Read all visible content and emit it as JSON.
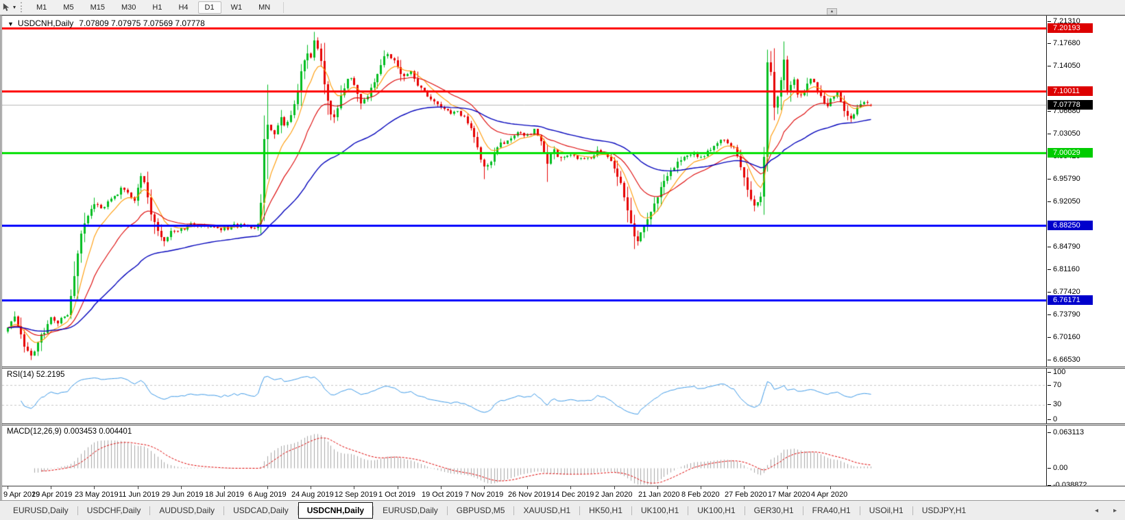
{
  "toolbar": {
    "caret_glyph": "▾",
    "timeframes": [
      {
        "label": "M1",
        "active": false
      },
      {
        "label": "M5",
        "active": false
      },
      {
        "label": "M15",
        "active": false
      },
      {
        "label": "M30",
        "active": false
      },
      {
        "label": "H1",
        "active": false
      },
      {
        "label": "H4",
        "active": false
      },
      {
        "label": "D1",
        "active": true
      },
      {
        "label": "W1",
        "active": false
      },
      {
        "label": "MN",
        "active": false
      }
    ],
    "scroll_up_glyph": "▲"
  },
  "chart_header": {
    "collapse_glyph": "▼",
    "symbol": "USDCNH,Daily",
    "ohlc_text": "7.07809 7.07975 7.07569 7.07778"
  },
  "price_axis": {
    "ticks": [
      "7.21310",
      "7.17680",
      "7.14050",
      "7.06680",
      "7.03050",
      "6.99420",
      "6.95790",
      "6.92050",
      "6.84790",
      "6.81160",
      "6.77420",
      "6.73790",
      "6.70160",
      "6.66530"
    ],
    "badges": [
      {
        "value": "7.20193",
        "color": "#dd0000"
      },
      {
        "value": "7.10011",
        "color": "#dd0000"
      },
      {
        "value": "7.07778",
        "color": "#000000"
      },
      {
        "value": "7.00029",
        "color": "#00cc00"
      },
      {
        "value": "6.88250",
        "color": "#0000cc"
      },
      {
        "value": "6.76171",
        "color": "#0000cc"
      }
    ]
  },
  "rsi_panel": {
    "label": "RSI(14)",
    "value": "52.2195",
    "scale": [
      "100",
      "70",
      "30",
      "0"
    ]
  },
  "macd_panel": {
    "label": "MACD(12,26,9)",
    "value": "0.003453 0.004401",
    "scale": [
      "0.063113",
      "0.00",
      "-0.038872"
    ]
  },
  "date_axis": [
    "9 Apr 2019",
    "29 Apr 2019",
    "23 May 2019",
    "11 Jun 2019",
    "29 Jun 2019",
    "18 Jul 2019",
    "6 Aug 2019",
    "24 Aug 2019",
    "12 Sep 2019",
    "1 Oct 2019",
    "19 Oct 2019",
    "7 Nov 2019",
    "26 Nov 2019",
    "14 Dec 2019",
    "2 Jan 2020",
    "21 Jan 2020",
    "8 Feb 2020",
    "27 Feb 2020",
    "17 Mar 2020",
    "4 Apr 2020"
  ],
  "tab_bar": {
    "scroll_left": "◂",
    "scroll_right": "▸",
    "tabs": [
      {
        "label": "EURUSD,Daily",
        "active": false
      },
      {
        "label": "USDCHF,Daily",
        "active": false
      },
      {
        "label": "AUDUSD,Daily",
        "active": false
      },
      {
        "label": "USDCAD,Daily",
        "active": false
      },
      {
        "label": "USDCNH,Daily",
        "active": true
      },
      {
        "label": "EURUSD,Daily",
        "active": false
      },
      {
        "label": "GBPUSD,M5",
        "active": false
      },
      {
        "label": "XAUUSD,H1",
        "active": false
      },
      {
        "label": "HK50,H1",
        "active": false
      },
      {
        "label": "UK100,H1",
        "active": false
      },
      {
        "label": "UK100,H1",
        "active": false
      },
      {
        "label": "GER30,H1",
        "active": false
      },
      {
        "label": "FRA40,H1",
        "active": false
      },
      {
        "label": "USOil,H1",
        "active": false
      },
      {
        "label": "USDJPY,H1",
        "active": false
      }
    ]
  },
  "chart_data": {
    "type": "candlestick",
    "title": "USDCNH,Daily",
    "symbol": "USDCNH",
    "timeframe": "Daily",
    "last_ohlc": {
      "open": 7.07809,
      "high": 7.07975,
      "low": 7.07569,
      "close": 7.07778
    },
    "price_range": {
      "top": 7.2131,
      "bottom": 6.6653
    },
    "candle_count": 260,
    "candle_up_color": "#00bd1f",
    "candle_down_color": "#e60000",
    "horizontal_lines": [
      {
        "price": 7.20193,
        "color": "#fe0000",
        "width": 3,
        "style": "resistance"
      },
      {
        "price": 7.10011,
        "color": "#fe0000",
        "width": 3,
        "style": "resistance"
      },
      {
        "price": 7.07778,
        "color": "#b9b9b9",
        "width": 1,
        "style": "current-price"
      },
      {
        "price": 7.00029,
        "color": "#00e000",
        "width": 3,
        "style": "level"
      },
      {
        "price": 6.8825,
        "color": "#0000fe",
        "width": 3,
        "style": "support"
      },
      {
        "price": 6.76171,
        "color": "#0000fe",
        "width": 3,
        "style": "support"
      }
    ],
    "moving_averages": [
      {
        "period": 8,
        "color": "#ff9900",
        "width": 1.1
      },
      {
        "period": 21,
        "color": "#dd0000",
        "width": 1.1
      },
      {
        "period": 55,
        "color": "#0000bb",
        "width": 1.4
      }
    ],
    "price_anchors": [
      [
        0,
        6.717
      ],
      [
        2,
        6.734
      ],
      [
        4,
        6.705
      ],
      [
        5,
        6.688
      ],
      [
        7,
        6.67
      ],
      [
        9,
        6.694
      ],
      [
        11,
        6.712
      ],
      [
        13,
        6.734
      ],
      [
        15,
        6.727
      ],
      [
        17,
        6.733
      ],
      [
        18,
        6.739
      ],
      [
        19,
        6.768
      ],
      [
        20,
        6.8
      ],
      [
        22,
        6.872
      ],
      [
        24,
        6.898
      ],
      [
        26,
        6.917
      ],
      [
        28,
        6.908
      ],
      [
        30,
        6.92
      ],
      [
        32,
        6.928
      ],
      [
        34,
        6.94
      ],
      [
        36,
        6.935
      ],
      [
        38,
        6.923
      ],
      [
        40,
        6.961
      ],
      [
        41,
        6.95
      ],
      [
        43,
        6.902
      ],
      [
        45,
        6.872
      ],
      [
        47,
        6.856
      ],
      [
        49,
        6.874
      ],
      [
        52,
        6.877
      ],
      [
        55,
        6.884
      ],
      [
        58,
        6.882
      ],
      [
        61,
        6.879
      ],
      [
        64,
        6.876
      ],
      [
        67,
        6.88
      ],
      [
        70,
        6.884
      ],
      [
        73,
        6.879
      ],
      [
        75,
        6.882
      ],
      [
        76,
        6.921
      ],
      [
        77,
        7.021
      ],
      [
        78,
        7.047
      ],
      [
        79,
        7.039
      ],
      [
        80,
        7.033
      ],
      [
        81,
        7.046
      ],
      [
        82,
        7.057
      ],
      [
        83,
        7.043
      ],
      [
        84,
        7.049
      ],
      [
        85,
        7.062
      ],
      [
        86,
        7.081
      ],
      [
        87,
        7.101
      ],
      [
        88,
        7.129
      ],
      [
        89,
        7.148
      ],
      [
        90,
        7.161
      ],
      [
        91,
        7.152
      ],
      [
        92,
        7.181
      ],
      [
        93,
        7.168
      ],
      [
        94,
        7.149
      ],
      [
        95,
        7.112
      ],
      [
        96,
        7.082
      ],
      [
        97,
        7.065
      ],
      [
        98,
        7.058
      ],
      [
        99,
        7.072
      ],
      [
        100,
        7.09
      ],
      [
        101,
        7.107
      ],
      [
        102,
        7.118
      ],
      [
        103,
        7.123
      ],
      [
        104,
        7.112
      ],
      [
        105,
        7.094
      ],
      [
        106,
        7.083
      ],
      [
        107,
        7.088
      ],
      [
        108,
        7.094
      ],
      [
        109,
        7.104
      ],
      [
        110,
        7.117
      ],
      [
        111,
        7.129
      ],
      [
        112,
        7.143
      ],
      [
        113,
        7.155
      ],
      [
        114,
        7.162
      ],
      [
        115,
        7.155
      ],
      [
        116,
        7.147
      ],
      [
        117,
        7.138
      ],
      [
        119,
        7.124
      ],
      [
        121,
        7.132
      ],
      [
        123,
        7.108
      ],
      [
        125,
        7.099
      ],
      [
        127,
        7.086
      ],
      [
        129,
        7.076
      ],
      [
        131,
        7.07
      ],
      [
        133,
        7.062
      ],
      [
        135,
        7.066
      ],
      [
        137,
        7.06
      ],
      [
        139,
        7.038
      ],
      [
        141,
        7.012
      ],
      [
        142,
        6.99
      ],
      [
        143,
        6.975
      ],
      [
        144,
        6.98
      ],
      [
        145,
        6.988
      ],
      [
        147,
        7.009
      ],
      [
        149,
        7.018
      ],
      [
        151,
        7.026
      ],
      [
        153,
        7.033
      ],
      [
        155,
        7.03
      ],
      [
        156,
        7.028
      ],
      [
        158,
        7.036
      ],
      [
        160,
        7.022
      ],
      [
        161,
        7.0
      ],
      [
        162,
        6.984
      ],
      [
        163,
        6.996
      ],
      [
        164,
        7.003
      ],
      [
        166,
        6.989
      ],
      [
        168,
        6.995
      ],
      [
        169,
        6.998
      ],
      [
        171,
        6.988
      ],
      [
        173,
        6.989
      ],
      [
        175,
        6.994
      ],
      [
        177,
        7.001
      ],
      [
        179,
        6.999
      ],
      [
        181,
        6.984
      ],
      [
        182,
        6.971
      ],
      [
        184,
        6.953
      ],
      [
        186,
        6.908
      ],
      [
        188,
        6.866
      ],
      [
        189,
        6.859
      ],
      [
        190,
        6.871
      ],
      [
        191,
        6.882
      ],
      [
        193,
        6.903
      ],
      [
        195,
        6.928
      ],
      [
        197,
        6.957
      ],
      [
        199,
        6.971
      ],
      [
        201,
        6.985
      ],
      [
        203,
        6.994
      ],
      [
        205,
        7.0
      ],
      [
        207,
        6.996
      ],
      [
        208,
        6.991
      ],
      [
        210,
        7.001
      ],
      [
        212,
        7.012
      ],
      [
        214,
        7.022
      ],
      [
        216,
        7.018
      ],
      [
        218,
        7.006
      ],
      [
        220,
        6.978
      ],
      [
        222,
        6.941
      ],
      [
        224,
        6.913
      ],
      [
        225,
        6.92
      ],
      [
        226,
        6.932
      ],
      [
        227,
        6.992
      ],
      [
        228,
        7.148
      ],
      [
        229,
        7.128
      ],
      [
        230,
        7.072
      ],
      [
        231,
        7.095
      ],
      [
        232,
        7.119
      ],
      [
        233,
        7.152
      ],
      [
        234,
        7.098
      ],
      [
        235,
        7.108
      ],
      [
        236,
        7.119
      ],
      [
        237,
        7.096
      ],
      [
        238,
        7.091
      ],
      [
        239,
        7.102
      ],
      [
        240,
        7.113
      ],
      [
        241,
        7.119
      ],
      [
        242,
        7.118
      ],
      [
        243,
        7.105
      ],
      [
        244,
        7.093
      ],
      [
        245,
        7.08
      ],
      [
        246,
        7.072
      ],
      [
        247,
        7.087
      ],
      [
        248,
        7.092
      ],
      [
        249,
        7.094
      ],
      [
        250,
        7.082
      ],
      [
        251,
        7.068
      ],
      [
        252,
        7.062
      ],
      [
        253,
        7.057
      ],
      [
        254,
        7.066
      ],
      [
        255,
        7.076
      ],
      [
        256,
        7.082
      ],
      [
        257,
        7.086
      ],
      [
        258,
        7.082
      ],
      [
        259,
        7.07778
      ]
    ],
    "wick_extremes": [
      {
        "i": 92,
        "high": 7.1965
      },
      {
        "i": 228,
        "high": 7.168
      },
      {
        "i": 7,
        "low": 6.6655
      },
      {
        "i": 188,
        "low": 6.845
      },
      {
        "i": 224,
        "low": 6.9055
      },
      {
        "i": 143,
        "low": 6.958
      },
      {
        "i": 162,
        "low": 6.954
      }
    ],
    "rsi": {
      "period": 14,
      "current": 52.2195,
      "levels": [
        70,
        30
      ],
      "color": "#3d9ae8",
      "range": [
        0,
        100
      ]
    },
    "macd": {
      "fast": 12,
      "slow": 26,
      "signal_period": 9,
      "macd_current": 0.003453,
      "signal_current": 0.004401,
      "histogram_color": "#a6a6a6",
      "signal_color": "#e00000",
      "axis_max": 0.063113,
      "axis_min": -0.038872
    }
  }
}
